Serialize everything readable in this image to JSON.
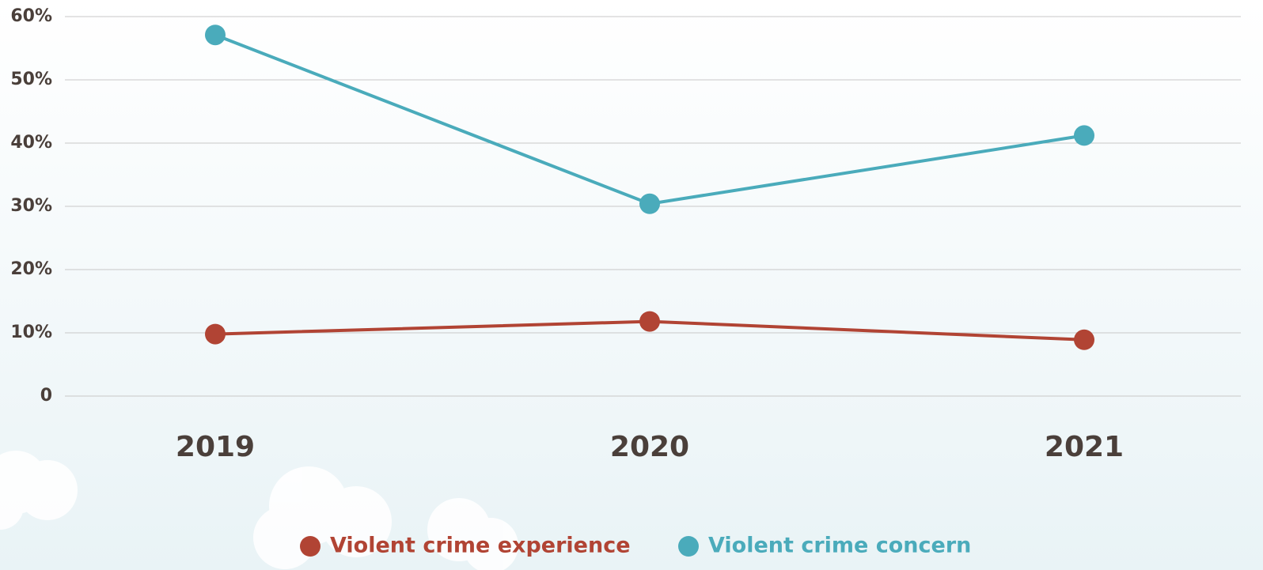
{
  "chart_data": {
    "type": "line",
    "categories": [
      "2019",
      "2020",
      "2021"
    ],
    "series": [
      {
        "name": "Violent crime experience",
        "color": "#b14434",
        "values": [
          9.8,
          11.8,
          8.9
        ]
      },
      {
        "name": "Violent crime concern",
        "color": "#4aabbb",
        "values": [
          57.1,
          30.4,
          41.2
        ]
      }
    ],
    "ylim": [
      0,
      60
    ],
    "yticks": [
      0,
      {
        "value": 10,
        "label": "10%"
      },
      {
        "value": 20,
        "label": "20%"
      },
      {
        "value": 30,
        "label": "30%"
      },
      {
        "value": 40,
        "label": "40%"
      },
      {
        "value": 50,
        "label": "50%"
      },
      {
        "value": 60,
        "label": "60%"
      }
    ],
    "grid": true
  }
}
